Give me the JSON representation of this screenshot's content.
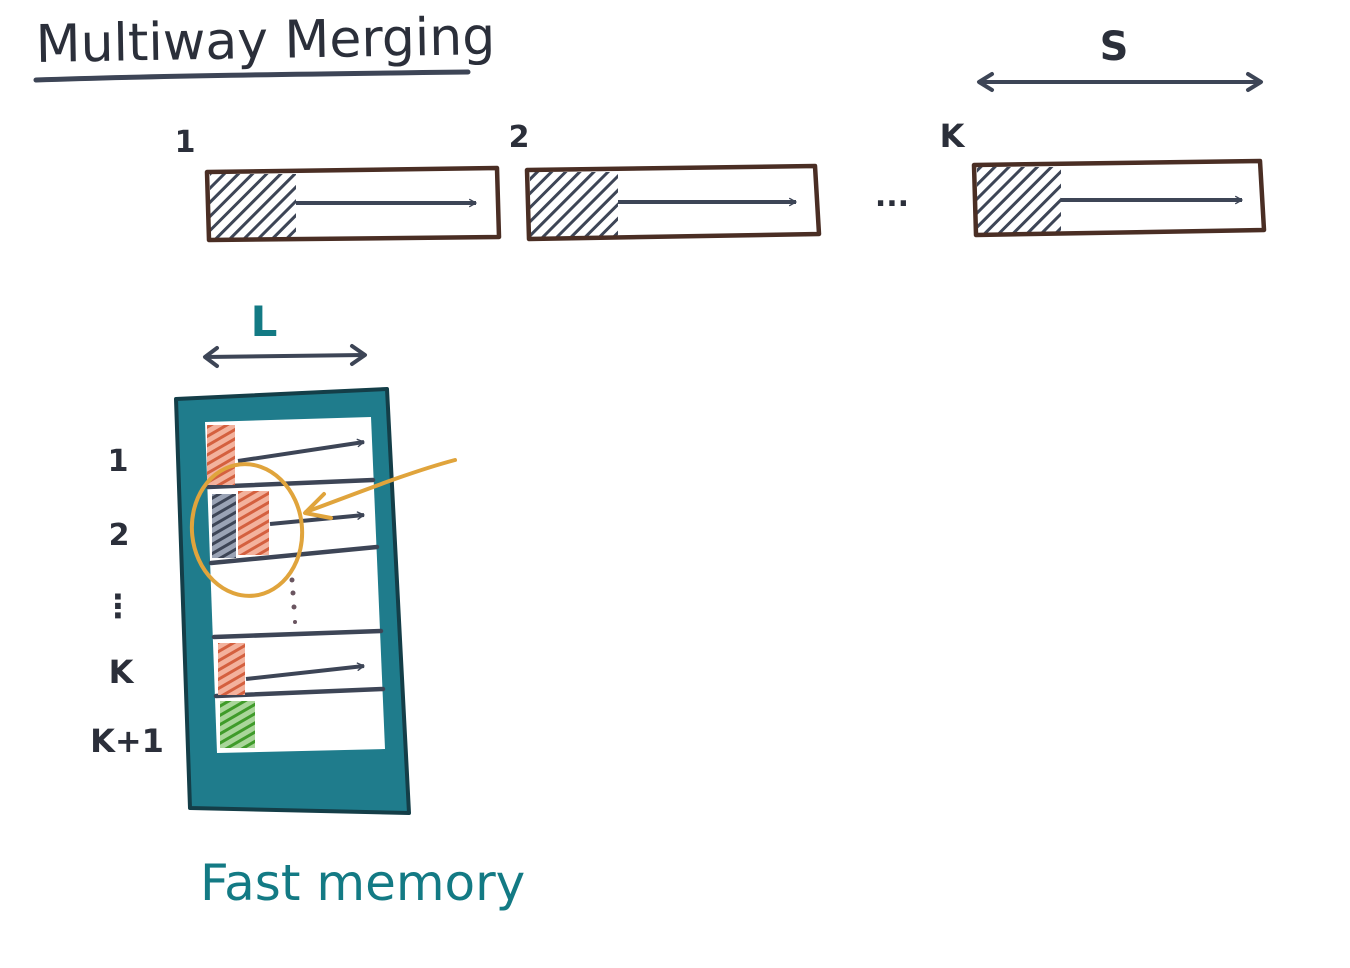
{
  "title": "Multiway Merging",
  "colors": {
    "ink": "#2b2f3a",
    "slate": "#3d4556",
    "box_brown": "#4a2e24",
    "teal": "#1f7c8c",
    "teal_text": "#137a84",
    "orange": "#d4603f",
    "green": "#3f9b2a",
    "gold": "#e0a43c"
  },
  "slow_memory": {
    "run_labels": [
      "1",
      "2",
      "K"
    ],
    "ellipsis": "...",
    "size_label": "S"
  },
  "fast_memory": {
    "width_label": "L",
    "row_labels": [
      "1",
      "2",
      "⋮",
      "K",
      "K+1"
    ],
    "caption": "Fast memory"
  }
}
